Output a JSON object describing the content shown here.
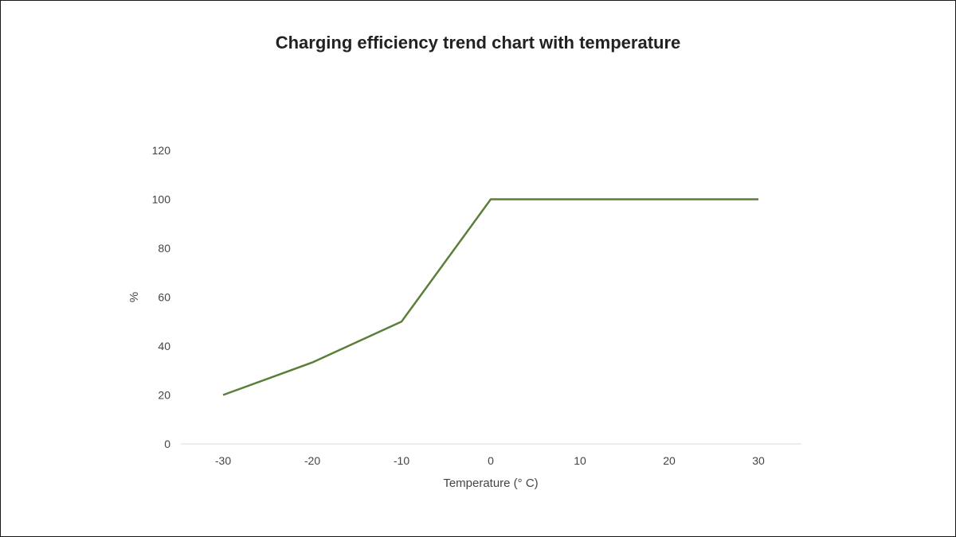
{
  "chart_data": {
    "type": "line",
    "title": "Charging efficiency trend chart with temperature",
    "xlabel": "Temperature (° C)",
    "ylabel": "%",
    "x": [
      -30,
      -20,
      -10,
      0,
      10,
      20,
      30
    ],
    "x_tick_labels": [
      "-30",
      "-20",
      "-10",
      "0",
      "10",
      "20",
      "30"
    ],
    "y_tick_labels": [
      "0",
      "20",
      "40",
      "60",
      "80",
      "100",
      "120"
    ],
    "ylim": [
      0,
      120
    ],
    "xlim": [
      -30,
      30
    ],
    "grid": false,
    "series": [
      {
        "values": [
          20,
          33.3,
          50,
          100,
          100,
          100,
          100
        ],
        "color": "#5b7f3a"
      }
    ]
  }
}
